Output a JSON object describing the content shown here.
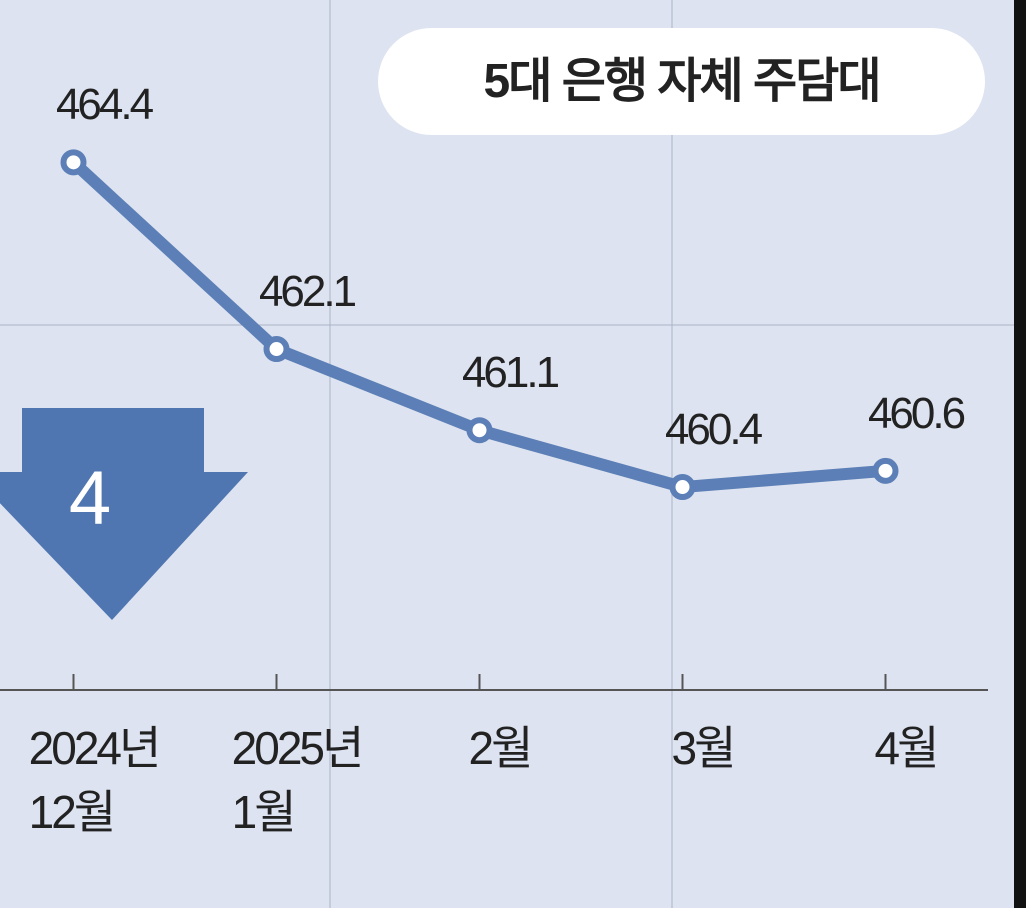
{
  "chart_data": {
    "type": "line",
    "title": "5대 은행 자체 주담대",
    "annotation": "4",
    "categories": [
      "2024년\n12월",
      "2025년\n1월",
      "2월",
      "3월",
      "4월"
    ],
    "series": [
      {
        "name": "5대 은행 자체 주담대",
        "color": "#5b7fb6",
        "values": [
          464.4,
          462.1,
          461.1,
          460.4,
          460.6
        ]
      }
    ],
    "ylim": [
      457.9,
      466.4
    ]
  }
}
